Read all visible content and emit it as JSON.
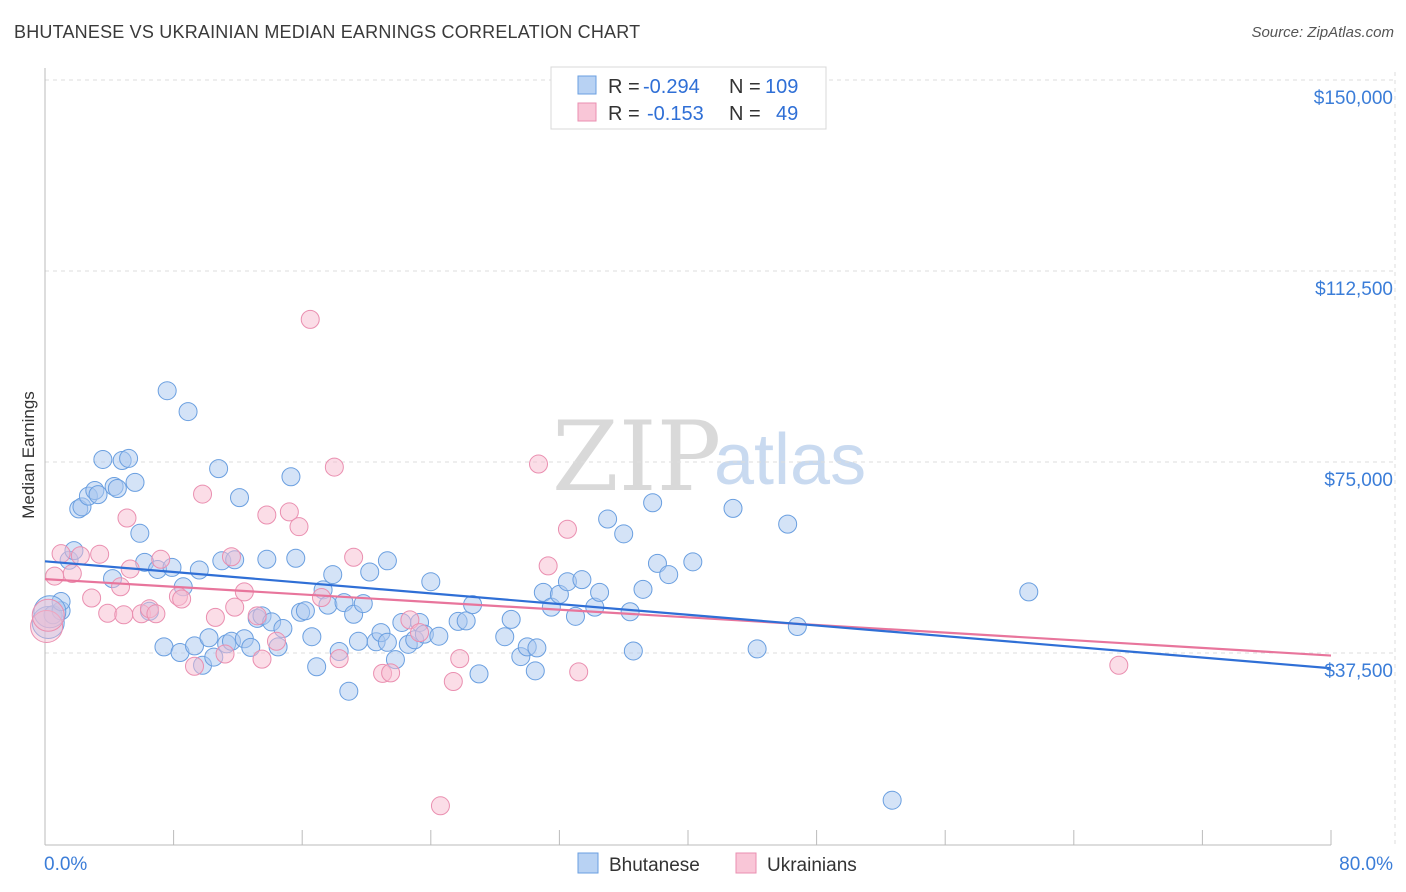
{
  "header": {
    "title": "BHUTANESE VS UKRAINIAN MEDIAN EARNINGS CORRELATION CHART",
    "source": "Source: ZipAtlas.com"
  },
  "watermark": {
    "zip": "ZIP",
    "atlas": "atlas"
  },
  "legend": {
    "rows": [
      {
        "r_label": "R =",
        "r_value": "-0.294",
        "n_label": "N =",
        "n_value": "109"
      },
      {
        "r_label": "R =",
        "r_value": "-0.153",
        "n_label": "N =",
        "n_value": "49"
      }
    ]
  },
  "bottom_legend": {
    "series1": "Bhutanese",
    "series2": "Ukrainians"
  },
  "chart_data": {
    "type": "scatter",
    "ylabel": "Median Earnings",
    "xlim": [
      0,
      80
    ],
    "ylim": [
      0,
      150000
    ],
    "x_tick_labels": [
      "0.0%",
      "80.0%"
    ],
    "y_ticks": [
      {
        "value": 150000,
        "label": "$150,000"
      },
      {
        "value": 112500,
        "label": "$112,500"
      },
      {
        "value": 75000,
        "label": "$75,000"
      },
      {
        "value": 37500,
        "label": "$37,500"
      }
    ],
    "grid": true,
    "colors": {
      "blue_fill": "#a9c8f0",
      "blue_stroke": "#6a9fe0",
      "blue_line": "#2f6fd6",
      "pink_fill": "#f7bcd0",
      "pink_stroke": "#ea8fb0",
      "pink_line": "#e8759c",
      "tick_text": "#3b7dd8",
      "grid": "#dddddd"
    },
    "series": [
      {
        "name": "Bhutanese",
        "trend": {
          "x": [
            0,
            80
          ],
          "y": [
            55500,
            34500
          ]
        },
        "points": [
          [
            0.2,
            43500
          ],
          [
            0.5,
            45000
          ],
          [
            1.0,
            45800
          ],
          [
            1.5,
            55700
          ],
          [
            1.8,
            57600
          ],
          [
            2.1,
            65800
          ],
          [
            2.3,
            66200
          ],
          [
            2.7,
            68300
          ],
          [
            3.1,
            69400
          ],
          [
            3.3,
            68600
          ],
          [
            3.6,
            75500
          ],
          [
            4.3,
            70200
          ],
          [
            4.5,
            69800
          ],
          [
            4.8,
            75300
          ],
          [
            5.2,
            75700
          ],
          [
            5.6,
            71000
          ],
          [
            4.2,
            52100
          ],
          [
            5.9,
            61000
          ],
          [
            6.2,
            55300
          ],
          [
            6.5,
            45700
          ],
          [
            7.0,
            53900
          ],
          [
            7.4,
            38700
          ],
          [
            7.6,
            89000
          ],
          [
            7.9,
            54300
          ],
          [
            8.4,
            37600
          ],
          [
            8.6,
            50500
          ],
          [
            8.9,
            84900
          ],
          [
            9.3,
            38900
          ],
          [
            9.6,
            53800
          ],
          [
            9.8,
            35100
          ],
          [
            10.2,
            40500
          ],
          [
            10.5,
            36700
          ],
          [
            10.8,
            73700
          ],
          [
            11.0,
            55600
          ],
          [
            11.3,
            39300
          ],
          [
            11.6,
            39800
          ],
          [
            11.8,
            55800
          ],
          [
            12.1,
            68000
          ],
          [
            12.4,
            40300
          ],
          [
            12.8,
            38600
          ],
          [
            13.2,
            44300
          ],
          [
            13.5,
            44800
          ],
          [
            13.8,
            55900
          ],
          [
            14.1,
            43600
          ],
          [
            14.5,
            38700
          ],
          [
            14.8,
            42300
          ],
          [
            15.3,
            72100
          ],
          [
            15.6,
            56100
          ],
          [
            15.9,
            45500
          ],
          [
            16.2,
            45800
          ],
          [
            16.6,
            40700
          ],
          [
            16.9,
            34800
          ],
          [
            17.3,
            49900
          ],
          [
            17.6,
            46900
          ],
          [
            17.9,
            52900
          ],
          [
            18.3,
            37800
          ],
          [
            18.6,
            47400
          ],
          [
            18.9,
            30000
          ],
          [
            19.2,
            45100
          ],
          [
            19.5,
            39800
          ],
          [
            19.8,
            47200
          ],
          [
            20.2,
            53400
          ],
          [
            20.6,
            39700
          ],
          [
            20.9,
            41500
          ],
          [
            21.3,
            55600
          ],
          [
            21.8,
            36200
          ],
          [
            22.2,
            43500
          ],
          [
            22.6,
            39200
          ],
          [
            23.0,
            40100
          ],
          [
            23.3,
            43500
          ],
          [
            23.6,
            41200
          ],
          [
            24.0,
            51500
          ],
          [
            24.5,
            40800
          ],
          [
            25.7,
            43700
          ],
          [
            26.2,
            43800
          ],
          [
            26.6,
            47000
          ],
          [
            27.0,
            33400
          ],
          [
            28.6,
            40700
          ],
          [
            29.0,
            44100
          ],
          [
            29.6,
            36800
          ],
          [
            30.0,
            38700
          ],
          [
            30.5,
            34000
          ],
          [
            31.0,
            49400
          ],
          [
            31.5,
            46500
          ],
          [
            32.0,
            49000
          ],
          [
            32.5,
            51500
          ],
          [
            33.0,
            44700
          ],
          [
            33.4,
            51900
          ],
          [
            34.2,
            46500
          ],
          [
            34.5,
            49400
          ],
          [
            35.0,
            63800
          ],
          [
            36.0,
            60900
          ],
          [
            36.4,
            45600
          ],
          [
            36.6,
            37900
          ],
          [
            37.2,
            50000
          ],
          [
            37.8,
            67000
          ],
          [
            38.1,
            55100
          ],
          [
            38.8,
            52900
          ],
          [
            40.3,
            55400
          ],
          [
            42.8,
            65900
          ],
          [
            44.3,
            38300
          ],
          [
            46.2,
            62800
          ],
          [
            46.8,
            42700
          ],
          [
            52.7,
            8600
          ],
          [
            61.2,
            49500
          ],
          [
            1.0,
            47600
          ],
          [
            21.3,
            39600
          ],
          [
            30.6,
            38500
          ],
          [
            0.3,
            45600
          ]
        ]
      },
      {
        "name": "Ukrainians",
        "trend": {
          "x": [
            0,
            80
          ],
          "y": [
            52000,
            37000
          ]
        },
        "points": [
          [
            0.1,
            42700
          ],
          [
            0.2,
            44900
          ],
          [
            0.6,
            52600
          ],
          [
            1.0,
            57000
          ],
          [
            1.7,
            53100
          ],
          [
            2.2,
            56600
          ],
          [
            2.9,
            48300
          ],
          [
            3.4,
            56900
          ],
          [
            3.9,
            45300
          ],
          [
            4.7,
            50500
          ],
          [
            4.9,
            45000
          ],
          [
            5.3,
            54000
          ],
          [
            5.1,
            64000
          ],
          [
            6.0,
            45200
          ],
          [
            6.5,
            46200
          ],
          [
            6.9,
            45200
          ],
          [
            7.2,
            55900
          ],
          [
            8.3,
            48600
          ],
          [
            8.5,
            48100
          ],
          [
            9.3,
            34900
          ],
          [
            9.8,
            68700
          ],
          [
            10.6,
            44500
          ],
          [
            11.2,
            37300
          ],
          [
            11.6,
            56400
          ],
          [
            11.8,
            46500
          ],
          [
            12.4,
            49500
          ],
          [
            13.2,
            44800
          ],
          [
            13.5,
            36300
          ],
          [
            13.8,
            64600
          ],
          [
            14.4,
            39800
          ],
          [
            15.2,
            65200
          ],
          [
            15.8,
            62300
          ],
          [
            16.5,
            103000
          ],
          [
            17.2,
            48400
          ],
          [
            18.0,
            74000
          ],
          [
            18.3,
            36400
          ],
          [
            19.2,
            56300
          ],
          [
            21.0,
            33500
          ],
          [
            21.5,
            33600
          ],
          [
            22.7,
            44000
          ],
          [
            23.3,
            41500
          ],
          [
            24.6,
            7500
          ],
          [
            25.4,
            31900
          ],
          [
            25.8,
            36400
          ],
          [
            30.7,
            74600
          ],
          [
            31.3,
            54600
          ],
          [
            32.5,
            61800
          ],
          [
            33.2,
            33800
          ],
          [
            66.8,
            35100
          ]
        ]
      }
    ]
  }
}
